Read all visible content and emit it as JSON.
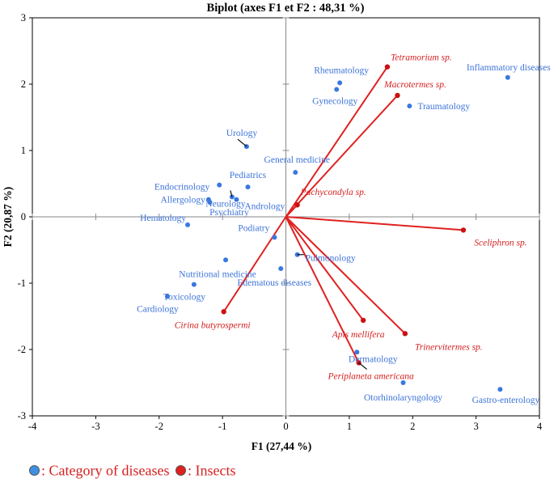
{
  "chart_data": {
    "type": "scatter",
    "title": "Biplot (axes F1 et F2 : 48,31 %)",
    "xlabel": "F1 (27,44 %)",
    "ylabel": "F2 (20,87 %)",
    "xlim": [
      -4,
      4
    ],
    "ylim": [
      -3,
      3
    ],
    "xticks": [
      "-4",
      "-3",
      "-2",
      "-1",
      "0",
      "1",
      "2",
      "3",
      "4"
    ],
    "yticks": [
      "-3",
      "-2",
      "-1",
      "0",
      "1",
      "2",
      "3"
    ],
    "diseases": [
      {
        "name": "Inflammatory diseases",
        "x": 3.5,
        "y": 2.1
      },
      {
        "name": "Rheumatology",
        "x": 0.85,
        "y": 2.02
      },
      {
        "name": "Gynecology",
        "x": 0.8,
        "y": 1.92
      },
      {
        "name": "Traumatology",
        "x": 1.95,
        "y": 1.67
      },
      {
        "name": "Urology",
        "x": -0.62,
        "y": 1.06
      },
      {
        "name": "General medicine",
        "x": 0.15,
        "y": 0.67
      },
      {
        "name": "Pediatrics",
        "x": -0.6,
        "y": 0.45
      },
      {
        "name": "Endocrinology",
        "x": -1.05,
        "y": 0.48
      },
      {
        "name": "Neurology",
        "x": -0.85,
        "y": 0.3
      },
      {
        "name": "Andrology",
        "x": -0.78,
        "y": 0.26
      },
      {
        "name": "Allergology",
        "x": -1.22,
        "y": 0.26
      },
      {
        "name": "Psychiatry",
        "x": -1.2,
        "y": 0.22
      },
      {
        "name": "Hematology",
        "x": -1.55,
        "y": -0.12
      },
      {
        "name": "Podiatry",
        "x": -0.18,
        "y": -0.31
      },
      {
        "name": "Pulmonology",
        "x": 0.18,
        "y": -0.57
      },
      {
        "name": "Nutritional medicine",
        "x": -0.95,
        "y": -0.65
      },
      {
        "name": "Edematous diseases",
        "x": -0.08,
        "y": -0.78
      },
      {
        "name": "Toxicology",
        "x": -1.45,
        "y": -1.02
      },
      {
        "name": "Cardiology",
        "x": -1.87,
        "y": -1.2
      },
      {
        "name": "Dermatology",
        "x": 1.12,
        "y": -2.04
      },
      {
        "name": "Otorhinolaryngology",
        "x": 1.85,
        "y": -2.5
      },
      {
        "name": "Gastro-enterology",
        "x": 3.38,
        "y": -2.6
      }
    ],
    "insects": [
      {
        "name": "Tetramorium sp.",
        "x": 1.6,
        "y": 2.26
      },
      {
        "name": "Macrotermes sp.",
        "x": 1.76,
        "y": 1.83
      },
      {
        "name": "Pachycondyla sp.",
        "x": 0.18,
        "y": 0.18
      },
      {
        "name": "Sceliphron sp.",
        "x": 2.8,
        "y": -0.2
      },
      {
        "name": "Apis mellifera",
        "x": 1.22,
        "y": -1.56
      },
      {
        "name": "Trinervitermes sp.",
        "x": 1.88,
        "y": -1.76
      },
      {
        "name": "Periplaneta americana",
        "x": 1.15,
        "y": -2.2
      },
      {
        "name": "Cirina butyrospermi",
        "x": -0.98,
        "y": -1.43
      }
    ],
    "legend": [
      {
        "label": ": Category of diseases",
        "color": "#3d8fe0"
      },
      {
        "label": ": Insects",
        "color": "#e02020"
      }
    ],
    "colors": {
      "disease": "#3d74d9",
      "insect": "#d42020",
      "vector": "#e02020"
    }
  }
}
